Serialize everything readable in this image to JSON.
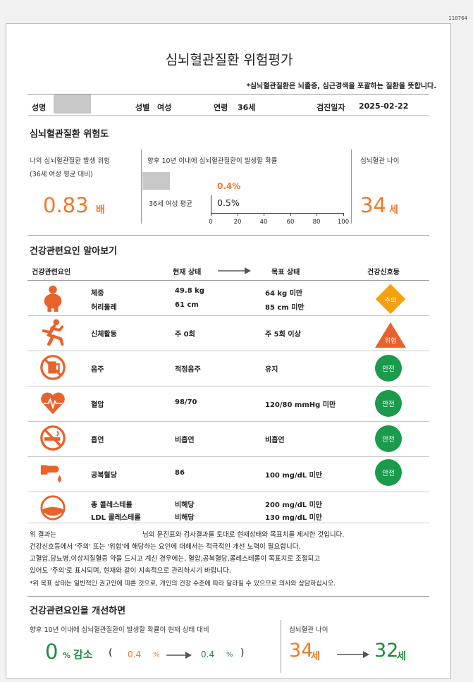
{
  "doc_id": "118764",
  "title": "심뇌혈관질환 위험평가",
  "note": "*심뇌혈관질환은 뇌졸중, 심근경색을 포괄하는 질환을 뜻합니다.",
  "patient": {
    "name_label": "성명",
    "sex_label": "성별",
    "sex": "여성",
    "age_label": "연령",
    "age": "36세",
    "date_label": "검진일자",
    "date": "2025-02-22"
  },
  "risk": {
    "section_title": "심뇌혈관질환 위험도",
    "my_risk_label": "나의 심뇌혈관질환 발생 위험",
    "my_risk_sub": "(36세 여성 평균 대비)",
    "ratio_value": "0.83",
    "ratio_unit": "배",
    "prob_label": "향후 10년 이내에 심뇌혈관질환이 발생할 확률",
    "my_prob": "0.4%",
    "avg_label": "36세 여성 평균",
    "avg_prob": "0.5%",
    "ticks": [
      "0",
      "20",
      "40",
      "60",
      "80",
      "100"
    ],
    "vessel_age_label": "심뇌혈관 나이",
    "vessel_age_value": "34",
    "vessel_age_unit": "세"
  },
  "factors": {
    "section_title": "건강관련요인 알아보기",
    "headers": {
      "factor": "건강관련요인",
      "current": "현재 상태",
      "target": "목표 상태",
      "signal": "건강신호등"
    },
    "rows": [
      {
        "icon": "obesity-icon",
        "names": [
          "체중",
          "허리둘레"
        ],
        "current": [
          "49.8 kg",
          "61 cm"
        ],
        "target": [
          "64 kg 미만",
          "85 cm 미만"
        ],
        "signal": "주의",
        "signal_type": "caution"
      },
      {
        "icon": "running-icon",
        "names": [
          "신체활동"
        ],
        "current": [
          "주 0회"
        ],
        "target": [
          "주 5회 이상"
        ],
        "signal": "위험",
        "signal_type": "danger"
      },
      {
        "icon": "no-alcohol-icon",
        "names": [
          "음주"
        ],
        "current": [
          "적정음주"
        ],
        "target": [
          "유지"
        ],
        "signal": "안전",
        "signal_type": "safe"
      },
      {
        "icon": "heart-icon",
        "names": [
          "혈압"
        ],
        "current": [
          "98/70"
        ],
        "target": [
          "120/80 mmHg 미만"
        ],
        "signal": "안전",
        "signal_type": "safe"
      },
      {
        "icon": "no-smoking-icon",
        "names": [
          "흡연"
        ],
        "current": [
          "비흡연"
        ],
        "target": [
          "비흡연"
        ],
        "signal": "안전",
        "signal_type": "safe"
      },
      {
        "icon": "blood-drop-icon",
        "names": [
          "공복혈당"
        ],
        "current": [
          "86"
        ],
        "target": [
          "100 mg/dL 미만"
        ],
        "signal": "안전",
        "signal_type": "safe"
      },
      {
        "icon": "cholesterol-icon",
        "names": [
          "총 콜레스테롤",
          "LDL 콜레스테롤"
        ],
        "current": [
          "비해당",
          "비해당"
        ],
        "target": [
          "200 mg/dL 미만",
          "130 mg/dL 미만"
        ],
        "signal": "",
        "signal_type": "none"
      }
    ]
  },
  "explanation": {
    "line1a": "위 결과는",
    "line1b": "님의 문진표와 검사결과를 토대로 현재상태와 목표치를 제시한 것입니다.",
    "line2": "건강신호등에서 '주의' 또는 '위험'에 해당하는 요인에 대해서는 적극적인 개선 노력이 필요합니다.",
    "line3": "고혈압,당뇨병,이상지질혈증 약을 드시고 계신 경우에는, 혈압,공복혈당,콜레스테롤이 목표치로 조절되고",
    "line4": "있어도 '주의'로 표시되며, 현재와 같이 지속적으로 관리하시기 바랍니다.",
    "line5": "*위 목표 상태는 일반적인 권고안에 따른 것으로, 개인의 건강 수준에 따라 달라질 수 있으므로 의사와 상담하십시오."
  },
  "improve": {
    "section_title": "건강관련요인을 개선하면",
    "prob_label": "향후 10년 이내에 심뇌혈관질환이 발생할 확률이 현재 상태 대비",
    "reduce_value": "0",
    "reduce_unit": "%",
    "reduce_text": "감소",
    "paren_open": "(",
    "from_value": "0.4",
    "from_unit": "%",
    "to_value": "0.4",
    "to_unit": "%",
    "paren_close": ")",
    "age_label": "심뇌혈관 나이",
    "age_from": "34",
    "age_to": "32",
    "age_unit": "세"
  }
}
